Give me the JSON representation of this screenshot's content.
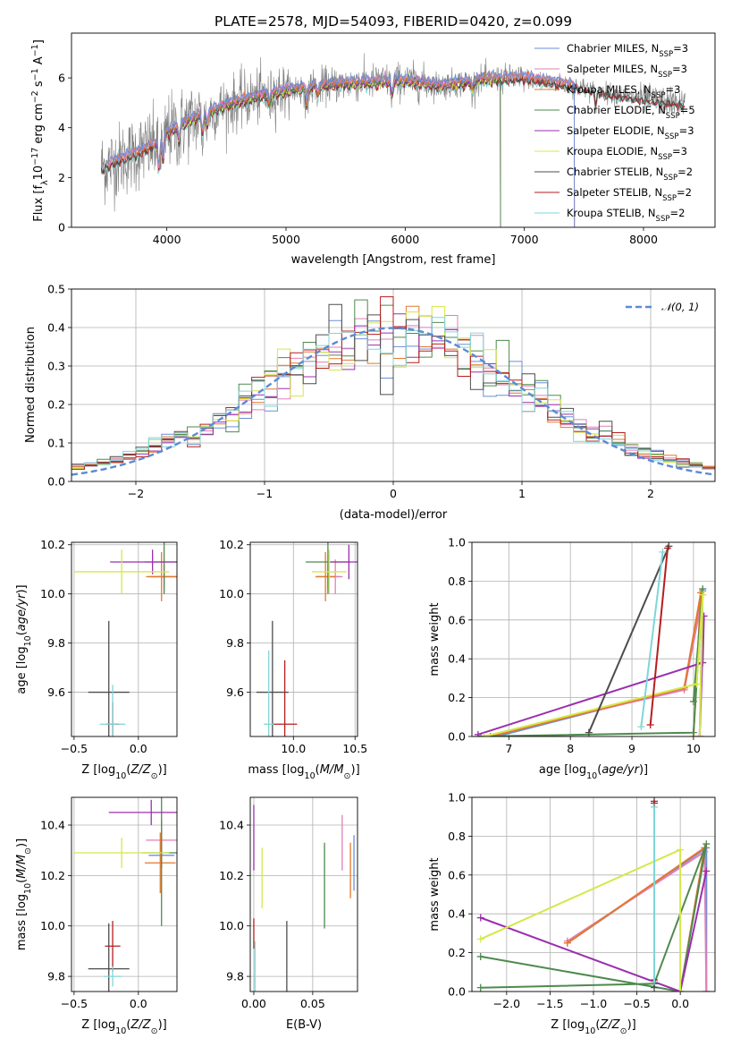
{
  "figure_title": "PLATE=2578, MJD=54093, FIBERID=0420, z=0.099",
  "colors": {
    "Chabrier MILES": "#6a8fd8",
    "Salpeter MILES": "#e37eb7",
    "Kroupa MILES": "#e3782e",
    "Chabrier ELODIE": "#4e8a4e",
    "Salpeter ELODIE": "#9b2fae",
    "Kroupa ELODIE": "#d4e84a",
    "Chabrier STELIB": "#4d4d4d",
    "Salpeter STELIB": "#b51e1e",
    "Kroupa STELIB": "#7fd6d8",
    "normal": "#5b8ad6"
  },
  "chart_data": [
    {
      "id": "spectrum",
      "type": "line",
      "xlabel": "wavelength [Angstrom, rest frame]",
      "ylabel": "Flux [f_λ 10^-17 erg cm^-2 s^-1 A^-1]",
      "xlim": [
        3200,
        8600
      ],
      "ylim": [
        0,
        7.8
      ],
      "xticks": [
        4000,
        5000,
        6000,
        7000,
        8000
      ],
      "yticks": [
        0,
        2,
        4,
        6
      ],
      "legend_position": "upper-right",
      "legend": [
        "Chabrier MILES, N_SSP=3",
        "Salpeter MILES, N_SSP=3",
        "Kroupa MILES, N_SSP=3",
        "Chabrier ELODIE, N_SSP=5",
        "Salpeter ELODIE, N_SSP=3",
        "Kroupa ELODIE, N_SSP=3",
        "Chabrier STELIB, N_SSP=2",
        "Salpeter STELIB, N_SSP=2",
        "Kroupa STELIB, N_SSP=2"
      ],
      "legend_parts": [
        {
          "name": "Chabrier MILES",
          "n": "3"
        },
        {
          "name": "Salpeter MILES",
          "n": "3"
        },
        {
          "name": "Kroupa MILES",
          "n": "3"
        },
        {
          "name": "Chabrier ELODIE",
          "n": "5"
        },
        {
          "name": "Salpeter ELODIE",
          "n": "3"
        },
        {
          "name": "Kroupa ELODIE",
          "n": "3"
        },
        {
          "name": "Chabrier STELIB",
          "n": "2"
        },
        {
          "name": "Salpeter STELIB",
          "n": "2"
        },
        {
          "name": "Kroupa STELIB",
          "n": "2"
        }
      ],
      "continuum": [
        [
          3450,
          2.4
        ],
        [
          3700,
          2.9
        ],
        [
          3900,
          3.3
        ],
        [
          4000,
          3.8
        ],
        [
          4200,
          4.3
        ],
        [
          4500,
          4.9
        ],
        [
          4800,
          5.3
        ],
        [
          5000,
          5.5
        ],
        [
          5300,
          5.7
        ],
        [
          5600,
          5.8
        ],
        [
          6000,
          5.9
        ],
        [
          6300,
          5.7
        ],
        [
          6600,
          5.9
        ],
        [
          7000,
          6.0
        ],
        [
          7400,
          5.7
        ],
        [
          7800,
          5.3
        ],
        [
          8300,
          5.0
        ]
      ],
      "model_ranges": {
        "Chabrier MILES": [
          3500,
          7420
        ],
        "Salpeter MILES": [
          3500,
          7420
        ],
        "Kroupa MILES": [
          3500,
          7420
        ],
        "Chabrier ELODIE": [
          3900,
          6800
        ],
        "Salpeter ELODIE": [
          3900,
          6800
        ],
        "Kroupa ELODIE": [
          3900,
          6800
        ],
        "Chabrier STELIB": [
          3450,
          8350
        ],
        "Salpeter STELIB": [
          3450,
          8350
        ],
        "Kroupa STELIB": [
          3450,
          8350
        ]
      }
    },
    {
      "id": "residuals",
      "type": "histogram",
      "xlabel": "(data-model)/error",
      "ylabel": "Normed distribution",
      "xlim": [
        -2.5,
        2.5
      ],
      "ylim": [
        0,
        0.5
      ],
      "xticks": [
        -2,
        -1,
        0,
        1,
        2
      ],
      "yticks": [
        0.0,
        0.1,
        0.2,
        0.3,
        0.4,
        0.5
      ],
      "bin_width": 0.1,
      "legend": [
        "𝒩(0, 1)"
      ],
      "legend_position": "upper-right",
      "grid": true,
      "curve": "normal pdf, mean 0, sigma 1 (dashed)"
    },
    {
      "id": "age_vs_Z",
      "type": "scatter",
      "xlabel": "Z [log10(Z/Z⊙)]",
      "ylabel": "age [log10(age/yr)]",
      "xlim": [
        -0.52,
        0.3
      ],
      "ylim": [
        9.42,
        10.21
      ],
      "xticks": [
        -0.5,
        0.0
      ],
      "yticks": [
        9.6,
        9.8,
        10.0,
        10.2
      ],
      "grid": true,
      "points": [
        {
          "model": "Chabrier MILES",
          "x": 0.2,
          "y": 10.07,
          "xerr": 0.12,
          "yerr": 0.05
        },
        {
          "model": "Salpeter MILES",
          "x": 0.2,
          "y": 10.07,
          "xerr": 0.1,
          "yerr": 0.07
        },
        {
          "model": "Kroupa MILES",
          "x": 0.18,
          "y": 10.07,
          "xerr": 0.12,
          "yerr": 0.1
        },
        {
          "model": "Chabrier ELODIE",
          "x": 0.2,
          "y": 10.13,
          "xerr": 0.15,
          "yerr": 0.13
        },
        {
          "model": "Salpeter ELODIE",
          "x": 0.11,
          "y": 10.13,
          "xerr": 0.33,
          "yerr": 0.05
        },
        {
          "model": "Kroupa ELODIE",
          "x": -0.13,
          "y": 10.09,
          "xerr": 0.37,
          "yerr": 0.09
        },
        {
          "model": "Chabrier STELIB",
          "x": -0.23,
          "y": 9.6,
          "xerr": 0.16,
          "yerr": 0.29
        },
        {
          "model": "Salpeter STELIB",
          "x": -0.2,
          "y": 9.47,
          "xerr": 0.05,
          "yerr": 0.09
        },
        {
          "model": "Kroupa STELIB",
          "x": -0.2,
          "y": 9.47,
          "xerr": 0.1,
          "yerr": 0.16
        }
      ]
    },
    {
      "id": "age_vs_mass",
      "type": "scatter",
      "xlabel": "mass [log10(M/M⊙)]",
      "ylabel": "",
      "xlim": [
        9.65,
        10.52
      ],
      "ylim": [
        9.42,
        10.21
      ],
      "xticks": [
        10.0,
        10.5
      ],
      "yticks": [
        9.6,
        9.8,
        10.0,
        10.2
      ],
      "grid": true,
      "points": [
        {
          "model": "Chabrier MILES",
          "x": 10.28,
          "y": 10.07,
          "xerr": 0.1,
          "yerr": 0.05
        },
        {
          "model": "Salpeter MILES",
          "x": 10.34,
          "y": 10.07,
          "xerr": 0.06,
          "yerr": 0.07
        },
        {
          "model": "Kroupa MILES",
          "x": 10.26,
          "y": 10.07,
          "xerr": 0.08,
          "yerr": 0.1
        },
        {
          "model": "Chabrier ELODIE",
          "x": 10.28,
          "y": 10.13,
          "xerr": 0.18,
          "yerr": 0.13
        },
        {
          "model": "Salpeter ELODIE",
          "x": 10.45,
          "y": 10.13,
          "xerr": 0.15,
          "yerr": 0.07
        },
        {
          "model": "Kroupa ELODIE",
          "x": 10.29,
          "y": 10.09,
          "xerr": 0.14,
          "yerr": 0.09
        },
        {
          "model": "Chabrier STELIB",
          "x": 9.83,
          "y": 9.6,
          "xerr": 0.13,
          "yerr": 0.29
        },
        {
          "model": "Salpeter STELIB",
          "x": 9.93,
          "y": 9.47,
          "xerr": 0.1,
          "yerr": 0.26
        },
        {
          "model": "Kroupa STELIB",
          "x": 9.8,
          "y": 9.47,
          "xerr": 0.04,
          "yerr": 0.3
        }
      ]
    },
    {
      "id": "weight_vs_age",
      "type": "line",
      "xlabel": "age [log10(age/yr)]",
      "ylabel": "mass weight",
      "xlim": [
        6.4,
        10.35
      ],
      "ylim": [
        0,
        1
      ],
      "xticks": [
        7,
        8,
        9,
        10
      ],
      "yticks": [
        0.0,
        0.2,
        0.4,
        0.6,
        0.8,
        1.0
      ],
      "grid": true,
      "series": [
        {
          "model": "Chabrier MILES",
          "points": [
            [
              6.8,
              0.0
            ],
            [
              9.85,
              0.25
            ],
            [
              10.15,
              0.75
            ],
            [
              10.1,
              0.0
            ]
          ]
        },
        {
          "model": "Salpeter MILES",
          "points": [
            [
              6.6,
              0.0
            ],
            [
              9.85,
              0.24
            ],
            [
              10.15,
              0.73
            ],
            [
              10.1,
              0.0
            ]
          ]
        },
        {
          "model": "Kroupa MILES",
          "points": [
            [
              6.7,
              0.0
            ],
            [
              9.85,
              0.25
            ],
            [
              10.12,
              0.74
            ],
            [
              10.0,
              0.0
            ]
          ]
        },
        {
          "model": "Chabrier ELODIE",
          "points": [
            [
              6.5,
              0.0
            ],
            [
              10.0,
              0.02
            ],
            [
              10.15,
              0.76
            ],
            [
              10.0,
              0.18
            ]
          ]
        },
        {
          "model": "Salpeter ELODIE",
          "points": [
            [
              6.5,
              0.01
            ],
            [
              10.15,
              0.38
            ],
            [
              10.17,
              0.62
            ],
            [
              10.1,
              0.0
            ]
          ]
        },
        {
          "model": "Kroupa ELODIE",
          "points": [
            [
              6.6,
              0.0
            ],
            [
              10.05,
              0.27
            ],
            [
              10.15,
              0.73
            ],
            [
              10.1,
              0.0
            ]
          ]
        },
        {
          "model": "Chabrier STELIB",
          "points": [
            [
              8.3,
              0.02
            ],
            [
              9.6,
              0.98
            ]
          ]
        },
        {
          "model": "Salpeter STELIB",
          "points": [
            [
              9.3,
              0.06
            ],
            [
              9.58,
              0.97
            ]
          ]
        },
        {
          "model": "Kroupa STELIB",
          "points": [
            [
              9.15,
              0.05
            ],
            [
              9.5,
              0.95
            ]
          ]
        }
      ]
    },
    {
      "id": "mass_vs_Z",
      "type": "scatter",
      "xlabel": "Z [log10(Z/Z⊙)]",
      "ylabel": "mass [log10(M/M⊙)]",
      "xlim": [
        -0.52,
        0.3
      ],
      "ylim": [
        9.74,
        10.51
      ],
      "xticks": [
        -0.5,
        0.0
      ],
      "yticks": [
        9.8,
        10.0,
        10.2,
        10.4
      ],
      "grid": true,
      "points": [
        {
          "model": "Chabrier MILES",
          "x": 0.18,
          "y": 10.28,
          "xerr": 0.1,
          "yerr": 0.05
        },
        {
          "model": "Salpeter MILES",
          "x": 0.18,
          "y": 10.34,
          "xerr": 0.12,
          "yerr": 0.08
        },
        {
          "model": "Kroupa MILES",
          "x": 0.17,
          "y": 10.25,
          "xerr": 0.12,
          "yerr": 0.12
        },
        {
          "model": "Chabrier ELODIE",
          "x": 0.18,
          "y": 10.29,
          "xerr": 0.15,
          "yerr": 0.29
        },
        {
          "model": "Salpeter ELODIE",
          "x": 0.1,
          "y": 10.45,
          "xerr": 0.33,
          "yerr": 0.05
        },
        {
          "model": "Kroupa ELODIE",
          "x": -0.13,
          "y": 10.29,
          "xerr": 0.37,
          "yerr": 0.06
        },
        {
          "model": "Chabrier STELIB",
          "x": -0.23,
          "y": 9.83,
          "xerr": 0.16,
          "yerr": 0.18
        },
        {
          "model": "Salpeter STELIB",
          "x": -0.2,
          "y": 9.92,
          "xerr": 0.06,
          "yerr": 0.1
        },
        {
          "model": "Kroupa STELIB",
          "x": -0.2,
          "y": 9.8,
          "xerr": 0.07,
          "yerr": 0.04
        }
      ]
    },
    {
      "id": "mass_vs_EBV",
      "type": "scatter",
      "xlabel": "E(B-V)",
      "ylabel": "",
      "xlim": [
        -0.003,
        0.088
      ],
      "ylim": [
        9.74,
        10.51
      ],
      "xticks": [
        0.0,
        0.05
      ],
      "yticks": [
        9.8,
        10.0,
        10.2,
        10.4
      ],
      "grid": true,
      "points": [
        {
          "model": "Chabrier MILES",
          "x": 0.085,
          "y": 10.25,
          "xerr": 0,
          "yerr": 0.11
        },
        {
          "model": "Salpeter MILES",
          "x": 0.075,
          "y": 10.33,
          "xerr": 0,
          "yerr": 0.11
        },
        {
          "model": "Kroupa MILES",
          "x": 0.082,
          "y": 10.22,
          "xerr": 0,
          "yerr": 0.11
        },
        {
          "model": "Chabrier ELODIE",
          "x": 0.06,
          "y": 10.16,
          "xerr": 0,
          "yerr": 0.17
        },
        {
          "model": "Salpeter ELODIE",
          "x": 0.0,
          "y": 10.35,
          "xerr": 0,
          "yerr": 0.13
        },
        {
          "model": "Kroupa ELODIE",
          "x": 0.007,
          "y": 10.19,
          "xerr": 0,
          "yerr": 0.12
        },
        {
          "model": "Chabrier STELIB",
          "x": 0.028,
          "y": 9.88,
          "xerr": 0,
          "yerr": 0.14
        },
        {
          "model": "Salpeter STELIB",
          "x": 0.0,
          "y": 9.97,
          "xerr": 0,
          "yerr": 0.06
        },
        {
          "model": "Kroupa STELIB",
          "x": 0.001,
          "y": 9.84,
          "xerr": 0,
          "yerr": 0.1
        }
      ]
    },
    {
      "id": "weight_vs_Z",
      "type": "line",
      "xlabel": "Z [log10(Z/Z⊙)]",
      "ylabel": "mass weight",
      "xlim": [
        -2.4,
        0.4
      ],
      "ylim": [
        0,
        1
      ],
      "xticks": [
        -2.0,
        -1.5,
        -1.0,
        -0.5,
        0.0
      ],
      "yticks": [
        0.0,
        0.2,
        0.4,
        0.6,
        0.8,
        1.0
      ],
      "grid": true,
      "series": [
        {
          "model": "Chabrier MILES",
          "points": [
            [
              -1.3,
              0.25
            ],
            [
              0.3,
              0.74
            ],
            [
              0.3,
              0.0
            ]
          ]
        },
        {
          "model": "Salpeter MILES",
          "points": [
            [
              -1.3,
              0.26
            ],
            [
              0.28,
              0.72
            ],
            [
              0.3,
              0.0
            ]
          ]
        },
        {
          "model": "Kroupa MILES",
          "points": [
            [
              -1.3,
              0.25
            ],
            [
              0.28,
              0.74
            ],
            [
              0.0,
              0.0
            ]
          ]
        },
        {
          "model": "Chabrier ELODIE",
          "points": [
            [
              -2.3,
              0.02
            ],
            [
              -0.3,
              0.04
            ],
            [
              0.3,
              0.76
            ],
            [
              0.0,
              0.0
            ],
            [
              -2.3,
              0.18
            ]
          ]
        },
        {
          "model": "Salpeter ELODIE",
          "points": [
            [
              -2.3,
              0.38
            ],
            [
              0.0,
              0.0
            ],
            [
              0.3,
              0.62
            ]
          ]
        },
        {
          "model": "Kroupa ELODIE",
          "points": [
            [
              -2.3,
              0.27
            ],
            [
              0.0,
              0.73
            ],
            [
              0.0,
              0.0
            ]
          ]
        },
        {
          "model": "Chabrier STELIB",
          "points": [
            [
              -0.3,
              0.98
            ],
            [
              -0.3,
              0.02
            ]
          ]
        },
        {
          "model": "Salpeter STELIB",
          "points": [
            [
              -0.3,
              0.97
            ],
            [
              -0.3,
              0.06
            ]
          ]
        },
        {
          "model": "Kroupa STELIB",
          "points": [
            [
              -0.3,
              0.95
            ],
            [
              -0.3,
              0.05
            ]
          ]
        }
      ]
    }
  ]
}
